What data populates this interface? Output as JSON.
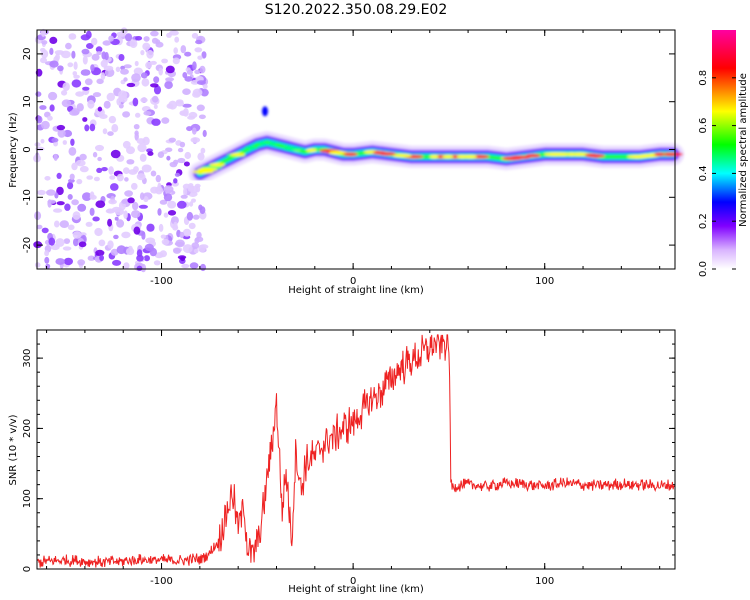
{
  "title": "S120.2022.350.08.29.E02",
  "chart_data": [
    {
      "type": "heatmap",
      "xlabel": "Height of straight line (km)",
      "ylabel": "Frequency (Hz)",
      "xlim": [
        -165,
        168
      ],
      "ylim": [
        -25,
        25
      ],
      "xticks": [
        -100,
        0,
        100
      ],
      "yticks": [
        -20,
        -10,
        0,
        10,
        20
      ],
      "colorbar": {
        "label": "Normalized spectral amplitude",
        "range": [
          0,
          1
        ],
        "ticks": [
          "0.0",
          "0.2",
          "0.4",
          "0.6",
          "0.8"
        ],
        "colormap": [
          "#ffffff",
          "#d9b3ff",
          "#8000ff",
          "#0000ff",
          "#00ffff",
          "#00ff00",
          "#ffff00",
          "#ff0000",
          "#ff00a0"
        ]
      },
      "ridge": {
        "x": [
          -80,
          -75,
          -70,
          -65,
          -60,
          -55,
          -50,
          -45,
          -40,
          -35,
          -30,
          -25,
          -20,
          -15,
          -10,
          -5,
          0,
          10,
          20,
          30,
          40,
          50,
          60,
          70,
          80,
          90,
          100,
          110,
          120,
          130,
          140,
          150,
          160,
          167
        ],
        "frequency": [
          -5,
          -4,
          -3,
          -2,
          -1,
          0,
          1,
          1.5,
          1,
          0.5,
          0,
          -0.5,
          0,
          0,
          -0.5,
          -1,
          -1,
          -0.5,
          -1,
          -1.5,
          -1.5,
          -1.5,
          -1.5,
          -1.5,
          -2,
          -1.5,
          -1,
          -1,
          -1,
          -1.5,
          -1.5,
          -1.5,
          -1,
          -1
        ]
      }
    },
    {
      "type": "line",
      "xlabel": "Height of straight line (km)",
      "ylabel": "SNR (10 * v/v)",
      "xlim": [
        -165,
        168
      ],
      "ylim": [
        0,
        340
      ],
      "xticks": [
        -100,
        0,
        100
      ],
      "yticks": [
        0,
        100,
        200,
        300
      ],
      "color": "#ee2222",
      "series": [
        {
          "x": [
            -165,
            -150,
            -130,
            -110,
            -90,
            -80,
            -75,
            -70,
            -66,
            -63,
            -60,
            -57,
            -55,
            -52,
            -48,
            -45,
            -43,
            -40,
            -37,
            -35,
            -32,
            -30,
            -27,
            -25,
            -20,
            -15,
            -10,
            -5,
            0,
            5,
            10,
            15,
            20,
            25,
            30,
            35,
            40,
            45,
            50,
            51,
            52,
            60,
            70,
            80,
            90,
            100,
            110,
            120,
            130,
            140,
            150,
            160,
            168
          ],
          "y": [
            10,
            12,
            10,
            13,
            12,
            15,
            22,
            40,
            80,
            110,
            60,
            90,
            30,
            20,
            60,
            130,
            160,
            240,
            80,
            140,
            40,
            170,
            110,
            150,
            160,
            180,
            190,
            200,
            210,
            225,
            240,
            255,
            270,
            285,
            295,
            305,
            315,
            320,
            322,
            125,
            118,
            120,
            118,
            122,
            120,
            118,
            122,
            120,
            119,
            121,
            120,
            118,
            120
          ]
        }
      ]
    }
  ]
}
